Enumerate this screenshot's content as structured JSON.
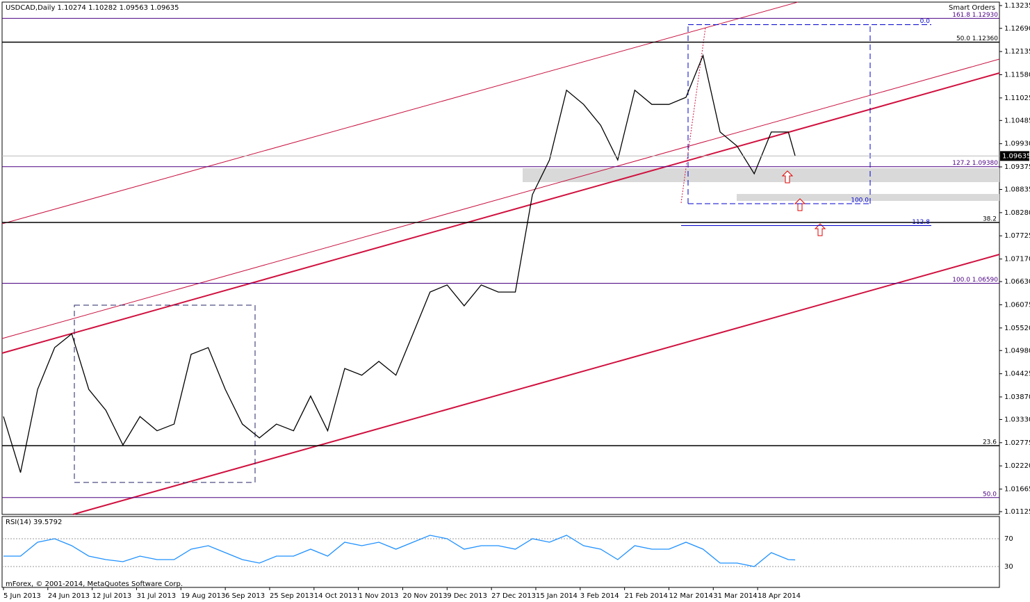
{
  "chart_data": [
    {
      "type": "line",
      "title": "USDCAD,Daily  1.10274 1.10282 1.09563 1.09635",
      "corner_label": "Smart Orders",
      "x": [
        0,
        5,
        10,
        15,
        20,
        25,
        30,
        35,
        40,
        45,
        50,
        55,
        60,
        65,
        70,
        75,
        80,
        85,
        90,
        95,
        100,
        105,
        110,
        115,
        120,
        125,
        130,
        135,
        140,
        145,
        150,
        155,
        160,
        165,
        170,
        175,
        180,
        185,
        190,
        195,
        200,
        205,
        210,
        215,
        220,
        225,
        230,
        232
      ],
      "series": [
        {
          "name": "USDCAD",
          "color": "#000000",
          "values": [
            1.034,
            1.0206,
            1.0405,
            1.0505,
            1.0538,
            1.0405,
            1.0355,
            1.0272,
            1.034,
            1.0306,
            1.0322,
            1.0489,
            1.0505,
            1.0405,
            1.0322,
            1.0289,
            1.0322,
            1.0306,
            1.0389,
            1.0306,
            1.0455,
            1.0439,
            1.0472,
            1.0439,
            1.0538,
            1.0638,
            1.0655,
            1.0605,
            1.0655,
            1.0638,
            1.0638,
            1.0871,
            1.0954,
            1.1121,
            1.1087,
            1.1037,
            1.0954,
            1.1121,
            1.1087,
            1.1087,
            1.1104,
            1.1204,
            1.1021,
            1.0987,
            1.0921,
            1.1021,
            1.1021,
            1.09635
          ]
        }
      ],
      "last_price": 1.09635,
      "xlim": [
        0,
        292
      ],
      "xticks": [
        {
          "value": 0,
          "label": "5 Jun 2013"
        },
        {
          "value": 13,
          "label": "24 Jun 2013"
        },
        {
          "value": 26,
          "label": "12 Jul 2013"
        },
        {
          "value": 39,
          "label": "31 Jul 2013"
        },
        {
          "value": 52,
          "label": "19 Aug 2013"
        },
        {
          "value": 65,
          "label": "6 Sep 2013"
        },
        {
          "value": 78,
          "label": "25 Sep 2013"
        },
        {
          "value": 91,
          "label": "14 Oct 2013"
        },
        {
          "value": 104,
          "label": "1 Nov 2013"
        },
        {
          "value": 117,
          "label": "20 Nov 2013"
        },
        {
          "value": 130,
          "label": "9 Dec 2013"
        },
        {
          "value": 143,
          "label": "27 Dec 2013"
        },
        {
          "value": 156,
          "label": "15 Jan 2014"
        },
        {
          "value": 169,
          "label": "3 Feb 2014"
        },
        {
          "value": 182,
          "label": "21 Feb 2014"
        },
        {
          "value": 195,
          "label": "12 Mar 2014"
        },
        {
          "value": 208,
          "label": "31 Mar 2014"
        },
        {
          "value": 221,
          "label": "18 Apr 2014"
        }
      ],
      "ylim": [
        1.01125,
        1.13235
      ],
      "yticks": [
        1.13235,
        {
          "value": 1.1269,
          "label": "1.12690"
        },
        1.12135,
        {
          "value": 1.1158,
          "label": "1.11580"
        },
        1.11025,
        1.10485,
        {
          "value": 1.0993,
          "label": "1.09930"
        },
        1.09375,
        1.08835,
        {
          "value": 1.0828,
          "label": "1.08280"
        },
        1.07725,
        {
          "value": 1.0717,
          "label": "1.07170"
        },
        {
          "value": 1.0663,
          "label": "1.06630"
        },
        1.06075,
        {
          "value": 1.0552,
          "label": "1.05520"
        },
        {
          "value": 1.0498,
          "label": "1.04980"
        },
        1.04425,
        {
          "value": 1.0387,
          "label": "1.03870"
        },
        {
          "value": 1.0333,
          "label": "1.03330"
        },
        1.02775,
        {
          "value": 1.0222,
          "label": "1.02220"
        },
        1.01665,
        1.01125
      ],
      "levels": [
        {
          "ratio": "161.8",
          "price": 1.1293,
          "price_label": "1.12930",
          "color": "#4b0082"
        },
        {
          "ratio": "0.0",
          "price": 1.12777,
          "color": "#0000cc"
        },
        {
          "ratio": "50.0",
          "price": 1.1236,
          "price_label": "1.12360",
          "color": "#000000"
        },
        {
          "ratio": "127.2",
          "price": 1.0938,
          "price_label": "1.09380",
          "color": "#4b0082"
        },
        {
          "ratio": "100.0",
          "price": 1.08495,
          "color": "#0000cc"
        },
        {
          "ratio": "38.2",
          "price": 1.08044,
          "color": "#000000"
        },
        {
          "ratio": "112.8",
          "price": 1.0797,
          "color": "#0000cc"
        },
        {
          "ratio": "100.0",
          "price": 1.0659,
          "price_label": "1.06590",
          "color": "#4b0082"
        },
        {
          "ratio": "23.6",
          "price": 1.02703,
          "color": "#000000"
        },
        {
          "ratio": "50.0",
          "price": 1.01461,
          "color": "#4b0082"
        }
      ]
    },
    {
      "type": "line",
      "title": "RSI(14) 39.5792",
      "footer": "mForex, © 2001-2014, MetaQuotes Software Corp.",
      "series": [
        {
          "name": "RSI(14)",
          "color": "#1e90ff",
          "values": [
            45,
            45,
            65,
            70,
            60,
            45,
            40,
            37,
            45,
            40,
            40,
            55,
            60,
            50,
            40,
            35,
            45,
            45,
            55,
            45,
            65,
            60,
            65,
            55,
            65,
            75,
            70,
            55,
            60,
            60,
            55,
            70,
            65,
            75,
            60,
            55,
            40,
            60,
            55,
            55,
            65,
            55,
            35,
            35,
            30,
            50,
            40,
            39.5792
          ]
        }
      ],
      "ylim": [
        0,
        100
      ],
      "yticks": [
        70,
        30
      ]
    }
  ]
}
